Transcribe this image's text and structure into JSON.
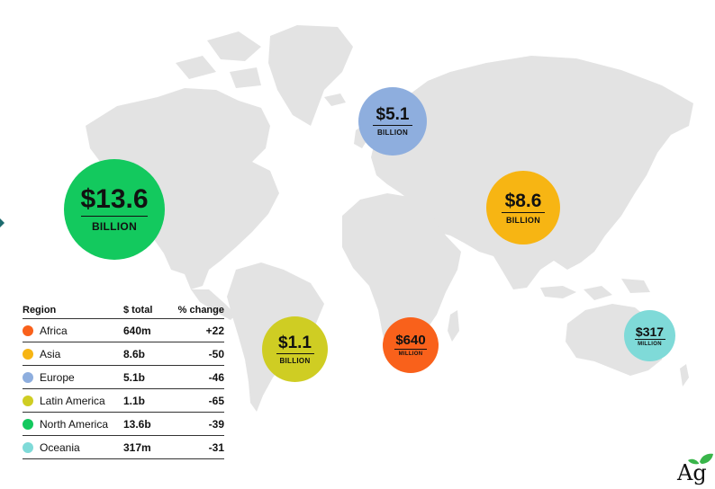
{
  "bubbles": {
    "north_america": {
      "amount": "$13.6",
      "unit": "BILLION",
      "color": "#13c95e"
    },
    "europe": {
      "amount": "$5.1",
      "unit": "BILLION",
      "color": "#8eaede"
    },
    "asia": {
      "amount": "$8.6",
      "unit": "BILLION",
      "color": "#f7b513"
    },
    "latin_america": {
      "amount": "$1.1",
      "unit": "BILLION",
      "color": "#cfcd23"
    },
    "africa": {
      "amount": "$640",
      "unit": "MILLION",
      "color": "#f9611b"
    },
    "oceania": {
      "amount": "$317",
      "unit": "MILLION",
      "color": "#7fdad8"
    }
  },
  "legend": {
    "headers": {
      "region": "Region",
      "total": "$ total",
      "change": "% change"
    },
    "rows": [
      {
        "region": "Africa",
        "total": "640m",
        "change": "+22",
        "color": "#f9611b"
      },
      {
        "region": "Asia",
        "total": "8.6b",
        "change": "-50",
        "color": "#f7b513"
      },
      {
        "region": "Europe",
        "total": "5.1b",
        "change": "-46",
        "color": "#8eaede"
      },
      {
        "region": "Latin America",
        "total": "1.1b",
        "change": "-65",
        "color": "#cfcd23"
      },
      {
        "region": "North America",
        "total": "13.6b",
        "change": "-39",
        "color": "#13c95e"
      },
      {
        "region": "Oceania",
        "total": "317m",
        "change": "-31",
        "color": "#7fdad8"
      }
    ]
  },
  "logo": {
    "text": "Ag",
    "icon": "leaf-icon",
    "leaf_color": "#39b54a"
  },
  "colors": {
    "land": "#e3e3e3",
    "arrow": "#1d6b6e"
  }
}
